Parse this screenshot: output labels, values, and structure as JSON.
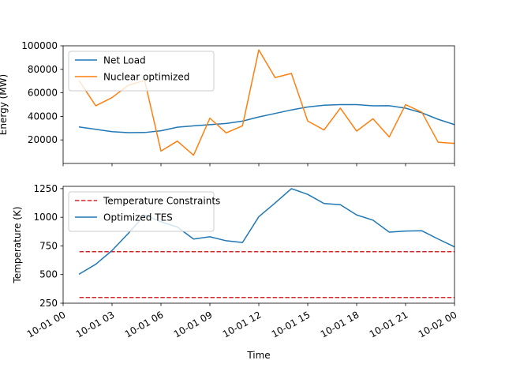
{
  "chart_data": [
    {
      "type": "line",
      "title": "",
      "xlabel": "",
      "ylabel": "Energy (MW)",
      "xlim": [
        "2023-10-01 00:00",
        "2023-10-02 00:00"
      ],
      "xticks": [
        "10-01 00",
        "10-01 03",
        "10-01 06",
        "10-01 09",
        "10-01 12",
        "10-01 15",
        "10-01 18",
        "10-01 21",
        "10-02 00"
      ],
      "xtick_labels_visible": false,
      "ylim": [
        0,
        100000
      ],
      "yticks": [
        20000,
        40000,
        60000,
        80000,
        100000
      ],
      "ytick_labels": [
        "20000",
        "40000",
        "60000",
        "80000",
        "100000"
      ],
      "legend_position": "upper-left",
      "grid": false,
      "x": [
        1,
        2,
        3,
        4,
        5,
        6,
        7,
        8,
        9,
        10,
        11,
        12,
        13,
        14,
        15,
        16,
        17,
        18,
        19,
        20,
        21,
        22,
        23,
        24
      ],
      "series": [
        {
          "name": "Net Load",
          "color": "#1f77b4",
          "dashed": false,
          "values": [
            31000,
            29000,
            27000,
            26200,
            26300,
            27800,
            30800,
            32000,
            33000,
            34000,
            36000,
            39500,
            42500,
            45500,
            48000,
            49500,
            50000,
            50000,
            49000,
            49100,
            47000,
            43000,
            37500,
            33000
          ]
        },
        {
          "name": "Nuclear optimized",
          "color": "#ff7f0e",
          "dashed": false,
          "values": [
            70000,
            49000,
            56000,
            66500,
            70500,
            10500,
            19000,
            7000,
            38500,
            26000,
            32000,
            96500,
            73000,
            76500,
            36000,
            28500,
            47000,
            27500,
            38000,
            22500,
            50000,
            43500,
            18000,
            17000
          ]
        }
      ]
    },
    {
      "type": "line",
      "title": "",
      "xlabel": "Time",
      "ylabel": "Temperature (K)",
      "xlim": [
        "2023-10-01 00:00",
        "2023-10-02 00:00"
      ],
      "xticks": [
        "10-01 00",
        "10-01 03",
        "10-01 06",
        "10-01 09",
        "10-01 12",
        "10-01 15",
        "10-01 18",
        "10-01 21",
        "10-02 00"
      ],
      "ylim": [
        250,
        1270
      ],
      "yticks": [
        250,
        500,
        750,
        1000,
        1250
      ],
      "ytick_labels": [
        "250",
        "500",
        "750",
        "1000",
        "1250"
      ],
      "legend_position": "upper-left",
      "grid": false,
      "x": [
        1,
        2,
        3,
        4,
        5,
        6,
        7,
        8,
        9,
        10,
        11,
        12,
        13,
        14,
        15,
        16,
        17,
        18,
        19,
        20,
        21,
        22,
        23,
        24
      ],
      "series": [
        {
          "name": "Temperature Constraints",
          "color": "#d62728",
          "dashed": true,
          "values_upper": 700,
          "values_lower": 300,
          "x_range": [
            1,
            24
          ]
        },
        {
          "name": "Optimized TES",
          "color": "#1f77b4",
          "dashed": false,
          "values": [
            505,
            590,
            710,
            860,
            1020,
            960,
            915,
            810,
            830,
            795,
            780,
            1005,
            1125,
            1250,
            1200,
            1120,
            1110,
            1020,
            975,
            870,
            880,
            882,
            810,
            742
          ]
        }
      ]
    }
  ]
}
